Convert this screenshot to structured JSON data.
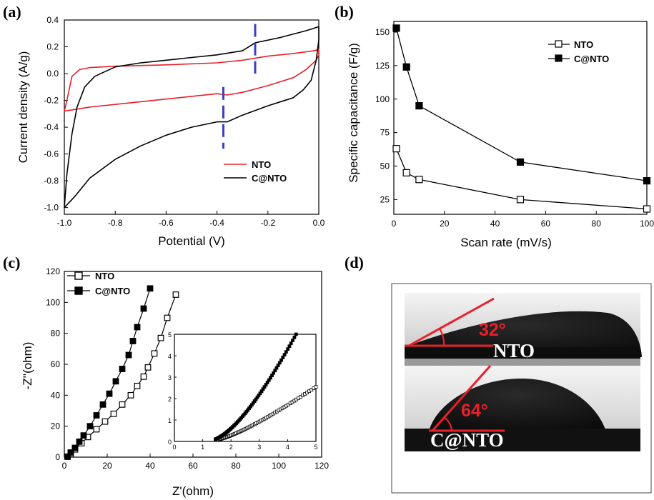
{
  "panel_labels": [
    "(a)",
    "(b)",
    "(c)",
    "(d)"
  ],
  "chart_data": [
    {
      "panel": "(a)",
      "type": "line",
      "xlabel": "Potential (V)",
      "ylabel": "Current density (A/g)",
      "xlim": [
        -1.0,
        0.0
      ],
      "ylim": [
        -1.05,
        0.4
      ],
      "x_ticks": [
        -1.0,
        -0.8,
        -0.6,
        -0.4,
        -0.2,
        0.0
      ],
      "x_tick_labels": [
        "-1.0",
        "-0.8",
        "-0.6",
        "-0.4",
        "-0.2",
        "0.0"
      ],
      "y_ticks": [
        0.4,
        0.2,
        0.0,
        -0.2,
        -0.4,
        -0.6,
        -0.8,
        -1.0
      ],
      "y_tick_labels": [
        "0.4",
        "0.2",
        "0.0",
        "-0.2",
        "-0.4",
        "-0.6",
        "-0.8",
        "-1.0"
      ],
      "legend_position": "bottom-right",
      "series": [
        {
          "name": "NTO",
          "color": "#e8202a",
          "points": [
            [
              -1.0,
              -0.28
            ],
            [
              -0.99,
              -0.2
            ],
            [
              -0.97,
              -0.02
            ],
            [
              -0.94,
              0.03
            ],
            [
              -0.9,
              0.045
            ],
            [
              -0.8,
              0.055
            ],
            [
              -0.6,
              0.065
            ],
            [
              -0.4,
              0.08
            ],
            [
              -0.3,
              0.1
            ],
            [
              -0.2,
              0.13
            ],
            [
              -0.1,
              0.15
            ],
            [
              -0.02,
              0.17
            ],
            [
              0.0,
              0.18
            ],
            [
              0.0,
              0.14
            ],
            [
              -0.01,
              0.1
            ],
            [
              -0.05,
              0.03
            ],
            [
              -0.1,
              -0.03
            ],
            [
              -0.2,
              -0.09
            ],
            [
              -0.3,
              -0.14
            ],
            [
              -0.36,
              -0.16
            ],
            [
              -0.4,
              -0.15
            ],
            [
              -0.5,
              -0.17
            ],
            [
              -0.6,
              -0.19
            ],
            [
              -0.7,
              -0.21
            ],
            [
              -0.8,
              -0.23
            ],
            [
              -0.9,
              -0.25
            ],
            [
              -1.0,
              -0.28
            ]
          ]
        },
        {
          "name": "C@NTO",
          "color": "#000000",
          "points": [
            [
              -1.0,
              -1.0
            ],
            [
              -0.99,
              -0.75
            ],
            [
              -0.97,
              -0.45
            ],
            [
              -0.95,
              -0.25
            ],
            [
              -0.92,
              -0.1
            ],
            [
              -0.88,
              -0.02
            ],
            [
              -0.8,
              0.05
            ],
            [
              -0.7,
              0.08
            ],
            [
              -0.6,
              0.1
            ],
            [
              -0.5,
              0.12
            ],
            [
              -0.4,
              0.14
            ],
            [
              -0.3,
              0.17
            ],
            [
              -0.25,
              0.23
            ],
            [
              -0.15,
              0.27
            ],
            [
              -0.05,
              0.32
            ],
            [
              0.0,
              0.35
            ],
            [
              0.0,
              0.25
            ],
            [
              -0.01,
              0.1
            ],
            [
              -0.03,
              -0.05
            ],
            [
              -0.06,
              -0.12
            ],
            [
              -0.1,
              -0.18
            ],
            [
              -0.2,
              -0.24
            ],
            [
              -0.3,
              -0.31
            ],
            [
              -0.36,
              -0.36
            ],
            [
              -0.4,
              -0.36
            ],
            [
              -0.5,
              -0.4
            ],
            [
              -0.6,
              -0.46
            ],
            [
              -0.7,
              -0.54
            ],
            [
              -0.8,
              -0.64
            ],
            [
              -0.9,
              -0.78
            ],
            [
              -0.96,
              -0.92
            ],
            [
              -1.0,
              -1.0
            ]
          ]
        }
      ],
      "annotations": [
        {
          "kind": "dashed-vertical",
          "color": "#3a3fc4",
          "x": -0.25,
          "y_range": [
            0.0,
            0.37
          ]
        },
        {
          "kind": "dashed-vertical",
          "color": "#3a3fc4",
          "x": -0.375,
          "y_range": [
            -0.56,
            -0.1
          ]
        }
      ]
    },
    {
      "panel": "(b)",
      "type": "line",
      "xlabel": "Scan rate (mV/s)",
      "ylabel": "Specific capacitance (F/g)",
      "xlim": [
        0,
        100
      ],
      "ylim": [
        14,
        158
      ],
      "x_ticks": [
        0,
        20,
        40,
        60,
        80,
        100
      ],
      "x_tick_labels": [
        "0",
        "20",
        "40",
        "60",
        "80",
        "100"
      ],
      "y_ticks": [
        25,
        50,
        75,
        100,
        125,
        150
      ],
      "y_tick_labels": [
        "25",
        "50",
        "75",
        "100",
        "125",
        "150"
      ],
      "legend_position": "top-right",
      "series": [
        {
          "name": "NTO",
          "marker": "open-square",
          "x": [
            1,
            5,
            10,
            50,
            100
          ],
          "values": [
            63,
            45,
            40,
            25,
            18
          ]
        },
        {
          "name": "C@NTO",
          "marker": "filled-square",
          "x": [
            1,
            5,
            10,
            50,
            100
          ],
          "values": [
            153,
            124,
            95,
            53,
            39
          ]
        }
      ]
    },
    {
      "panel": "(c)",
      "type": "scatter",
      "xlabel": "Z'(ohm)",
      "ylabel": "-Z''(ohm)",
      "xlim": [
        0,
        120
      ],
      "ylim": [
        0,
        120
      ],
      "x_ticks": [
        0,
        20,
        40,
        60,
        80,
        100,
        120
      ],
      "x_tick_labels": [
        "0",
        "20",
        "40",
        "60",
        "80",
        "100",
        "120"
      ],
      "y_ticks": [
        0,
        20,
        40,
        60,
        80,
        100,
        120
      ],
      "y_tick_labels": [
        "0",
        "20",
        "40",
        "60",
        "80",
        "100",
        "120"
      ],
      "legend_position": "top-left",
      "series": [
        {
          "name": "NTO",
          "marker": "open-square",
          "x": [
            1.5,
            3,
            5,
            8,
            11,
            15,
            19,
            23,
            27,
            31,
            34,
            37,
            39,
            42,
            45,
            48,
            52
          ],
          "values": [
            0.3,
            2,
            5,
            9,
            13,
            18,
            23,
            28,
            34,
            40,
            46,
            52,
            58,
            67,
            77,
            90,
            105
          ]
        },
        {
          "name": "C@NTO",
          "marker": "filled-square",
          "x": [
            1.5,
            3,
            5,
            7,
            9,
            12,
            15,
            18,
            21,
            24,
            27,
            30,
            32,
            34,
            37,
            40
          ],
          "values": [
            0.3,
            3,
            6,
            10,
            14,
            20,
            27,
            34,
            41,
            49,
            57,
            66,
            75,
            84,
            96,
            109
          ]
        }
      ],
      "inset": {
        "xlim": [
          0,
          5
        ],
        "ylim": [
          0,
          5
        ],
        "x_ticks": [
          0,
          1,
          2,
          3,
          4,
          5
        ],
        "x_tick_labels": [
          "0",
          "1",
          "2",
          "3",
          "4",
          "5"
        ],
        "y_ticks": [
          0,
          1,
          2,
          3,
          4,
          5
        ],
        "y_tick_labels": [
          "0",
          "1",
          "2",
          "3",
          "4",
          "5"
        ],
        "series": [
          {
            "name": "NTO",
            "marker": "open-square",
            "start": [
              1.6,
              0.1
            ],
            "end": [
              5.0,
              2.55
            ],
            "knee": [
              2.6,
              0.45
            ]
          },
          {
            "name": "C@NTO",
            "marker": "filled-square",
            "start": [
              1.45,
              0.1
            ],
            "end": [
              4.3,
              5.0
            ],
            "knee": [
              2.5,
              0.7
            ]
          }
        ]
      }
    }
  ],
  "contact_angle": {
    "panel": "(d)",
    "images": [
      {
        "sample": "NTO",
        "angle_label": "32°",
        "angle_deg": 32
      },
      {
        "sample": "C@NTO",
        "angle_label": "64°",
        "angle_deg": 64
      }
    ],
    "line_color": "#e8202a"
  }
}
